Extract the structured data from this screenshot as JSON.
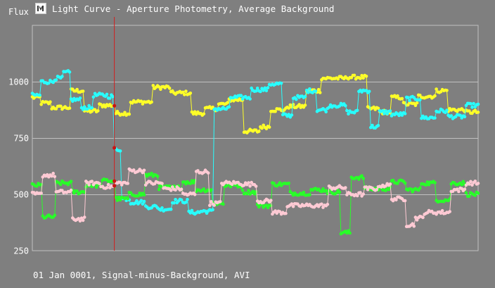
{
  "window": {
    "title": "Light Curve - Aperture Photometry, Average Background",
    "icon": "light-curve-app-icon"
  },
  "footer": {
    "text": "01 Jan 0001, Signal-minus-Background, AVI"
  },
  "colors": {
    "background": "#7f7f7f",
    "grid": "#c0c0c0",
    "cursor": "#d21e1e",
    "cursor_marker": "#c81414"
  },
  "chart_data": {
    "type": "line",
    "ylabel": "Flux",
    "xlabel": "",
    "yticks": [
      1000,
      750,
      500,
      250
    ],
    "ylim": [
      250,
      1000
    ],
    "grid": true,
    "x_count": 300,
    "cursor_frame": 55,
    "series": [
      {
        "color": "#ffff28",
        "segments": [
          [
            0,
            5,
            930
          ],
          [
            6,
            12,
            905
          ],
          [
            13,
            25,
            885
          ],
          [
            26,
            34,
            960
          ],
          [
            35,
            44,
            870
          ],
          [
            45,
            55,
            895
          ],
          [
            56,
            65,
            860
          ],
          [
            66,
            80,
            910
          ],
          [
            81,
            92,
            975
          ],
          [
            93,
            106,
            950
          ],
          [
            107,
            115,
            860
          ],
          [
            116,
            124,
            880
          ],
          [
            125,
            131,
            900
          ],
          [
            132,
            141,
            920
          ],
          [
            142,
            152,
            780
          ],
          [
            153,
            159,
            800
          ],
          [
            160,
            170,
            875
          ],
          [
            171,
            183,
            890
          ],
          [
            184,
            193,
            960
          ],
          [
            194,
            210,
            1015
          ],
          [
            211,
            224,
            1020
          ],
          [
            225,
            232,
            880
          ],
          [
            233,
            240,
            865
          ],
          [
            241,
            248,
            930
          ],
          [
            249,
            258,
            900
          ],
          [
            259,
            270,
            935
          ],
          [
            271,
            278,
            960
          ],
          [
            279,
            290,
            875
          ],
          [
            291,
            299,
            865
          ]
        ]
      },
      {
        "color": "#28ffff",
        "segments": [
          [
            0,
            5,
            940
          ],
          [
            6,
            14,
            1000
          ],
          [
            15,
            20,
            1015
          ],
          [
            21,
            25,
            1040
          ],
          [
            26,
            32,
            920
          ],
          [
            33,
            40,
            885
          ],
          [
            41,
            50,
            940
          ],
          [
            51,
            54,
            935
          ],
          [
            55,
            59,
            700
          ],
          [
            60,
            65,
            480
          ],
          [
            66,
            75,
            465
          ],
          [
            76,
            84,
            445
          ],
          [
            85,
            93,
            435
          ],
          [
            94,
            104,
            470
          ],
          [
            105,
            112,
            420
          ],
          [
            113,
            121,
            425
          ],
          [
            122,
            132,
            880
          ],
          [
            133,
            146,
            930
          ],
          [
            147,
            158,
            965
          ],
          [
            159,
            167,
            990
          ],
          [
            168,
            174,
            850
          ],
          [
            175,
            183,
            930
          ],
          [
            184,
            190,
            960
          ],
          [
            191,
            198,
            875
          ],
          [
            199,
            210,
            895
          ],
          [
            211,
            218,
            865
          ],
          [
            219,
            226,
            960
          ],
          [
            227,
            232,
            800
          ],
          [
            233,
            240,
            865
          ],
          [
            241,
            250,
            855
          ],
          [
            251,
            260,
            925
          ],
          [
            261,
            270,
            840
          ],
          [
            271,
            278,
            870
          ],
          [
            279,
            290,
            845
          ],
          [
            291,
            299,
            895
          ]
        ]
      },
      {
        "color": "#28ff28",
        "segments": [
          [
            0,
            6,
            540
          ],
          [
            7,
            15,
            400
          ],
          [
            16,
            26,
            550
          ],
          [
            27,
            35,
            510
          ],
          [
            36,
            46,
            540
          ],
          [
            47,
            55,
            560
          ],
          [
            56,
            64,
            480
          ],
          [
            65,
            75,
            500
          ],
          [
            76,
            84,
            585
          ],
          [
            85,
            100,
            530
          ],
          [
            101,
            109,
            555
          ],
          [
            110,
            120,
            520
          ],
          [
            121,
            128,
            460
          ],
          [
            129,
            140,
            540
          ],
          [
            141,
            150,
            510
          ],
          [
            151,
            160,
            450
          ],
          [
            161,
            172,
            545
          ],
          [
            173,
            186,
            505
          ],
          [
            187,
            197,
            520
          ],
          [
            198,
            206,
            510
          ],
          [
            207,
            213,
            330
          ],
          [
            214,
            222,
            575
          ],
          [
            223,
            232,
            525
          ],
          [
            233,
            240,
            525
          ],
          [
            241,
            250,
            555
          ],
          [
            251,
            260,
            520
          ],
          [
            261,
            270,
            550
          ],
          [
            271,
            280,
            475
          ],
          [
            281,
            290,
            550
          ],
          [
            291,
            299,
            500
          ]
        ]
      },
      {
        "color": "#ffcad4",
        "segments": [
          [
            0,
            6,
            500
          ],
          [
            7,
            15,
            585
          ],
          [
            16,
            26,
            510
          ],
          [
            27,
            35,
            390
          ],
          [
            36,
            45,
            550
          ],
          [
            46,
            55,
            535
          ],
          [
            56,
            64,
            550
          ],
          [
            65,
            75,
            605
          ],
          [
            76,
            87,
            550
          ],
          [
            88,
            100,
            525
          ],
          [
            101,
            109,
            500
          ],
          [
            110,
            118,
            600
          ],
          [
            119,
            126,
            460
          ],
          [
            127,
            140,
            550
          ],
          [
            141,
            150,
            545
          ],
          [
            151,
            160,
            470
          ],
          [
            161,
            170,
            420
          ],
          [
            171,
            186,
            450
          ],
          [
            187,
            198,
            450
          ],
          [
            199,
            210,
            530
          ],
          [
            211,
            222,
            500
          ],
          [
            223,
            232,
            525
          ],
          [
            233,
            240,
            540
          ],
          [
            241,
            250,
            480
          ],
          [
            251,
            256,
            365
          ],
          [
            257,
            262,
            395
          ],
          [
            263,
            280,
            420
          ],
          [
            281,
            290,
            520
          ],
          [
            291,
            299,
            550
          ]
        ]
      }
    ]
  }
}
